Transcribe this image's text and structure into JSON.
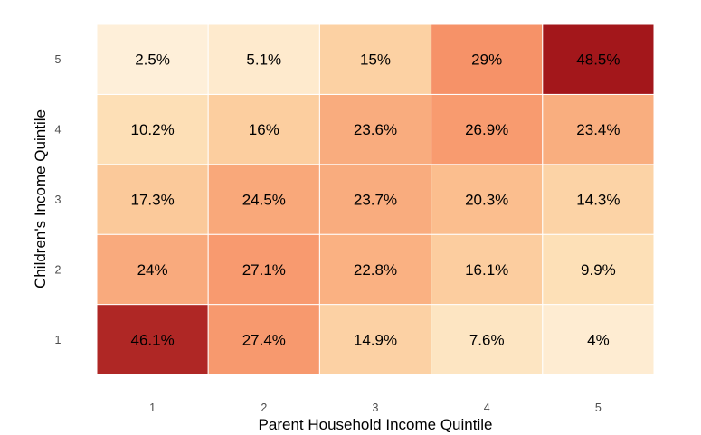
{
  "chart_data": {
    "type": "heatmap",
    "x_categories": [
      "1",
      "2",
      "3",
      "4",
      "5"
    ],
    "y_categories": [
      "1",
      "2",
      "3",
      "4",
      "5"
    ],
    "xlabel": "Parent Household Income Quintile",
    "ylabel": "Children's Income Quintile",
    "values": [
      [
        46.1,
        27.4,
        14.9,
        7.6,
        4.0
      ],
      [
        24.0,
        27.1,
        22.8,
        16.1,
        9.9
      ],
      [
        17.3,
        24.5,
        23.7,
        20.3,
        14.3
      ],
      [
        10.2,
        16.0,
        23.6,
        26.9,
        23.4
      ],
      [
        2.5,
        5.1,
        15.0,
        29.0,
        48.5
      ]
    ],
    "labels": [
      [
        "46.1%",
        "27.4%",
        "14.9%",
        "7.6%",
        "4%"
      ],
      [
        "24%",
        "27.1%",
        "22.8%",
        "16.1%",
        "9.9%"
      ],
      [
        "17.3%",
        "24.5%",
        "23.7%",
        "20.3%",
        "14.3%"
      ],
      [
        "10.2%",
        "16%",
        "23.6%",
        "26.9%",
        "23.4%"
      ],
      [
        "2.5%",
        "5.1%",
        "15%",
        "29%",
        "48.5%"
      ]
    ],
    "color_scale": {
      "stops": [
        [
          0,
          "#fff4e4"
        ],
        [
          0.2,
          "#fde1b8"
        ],
        [
          0.4,
          "#fbc392"
        ],
        [
          0.55,
          "#f89c70"
        ],
        [
          0.66,
          "#f4865e"
        ],
        [
          1.0,
          "#a3171b"
        ]
      ],
      "domain": [
        0,
        48.5
      ]
    },
    "grid": false
  }
}
